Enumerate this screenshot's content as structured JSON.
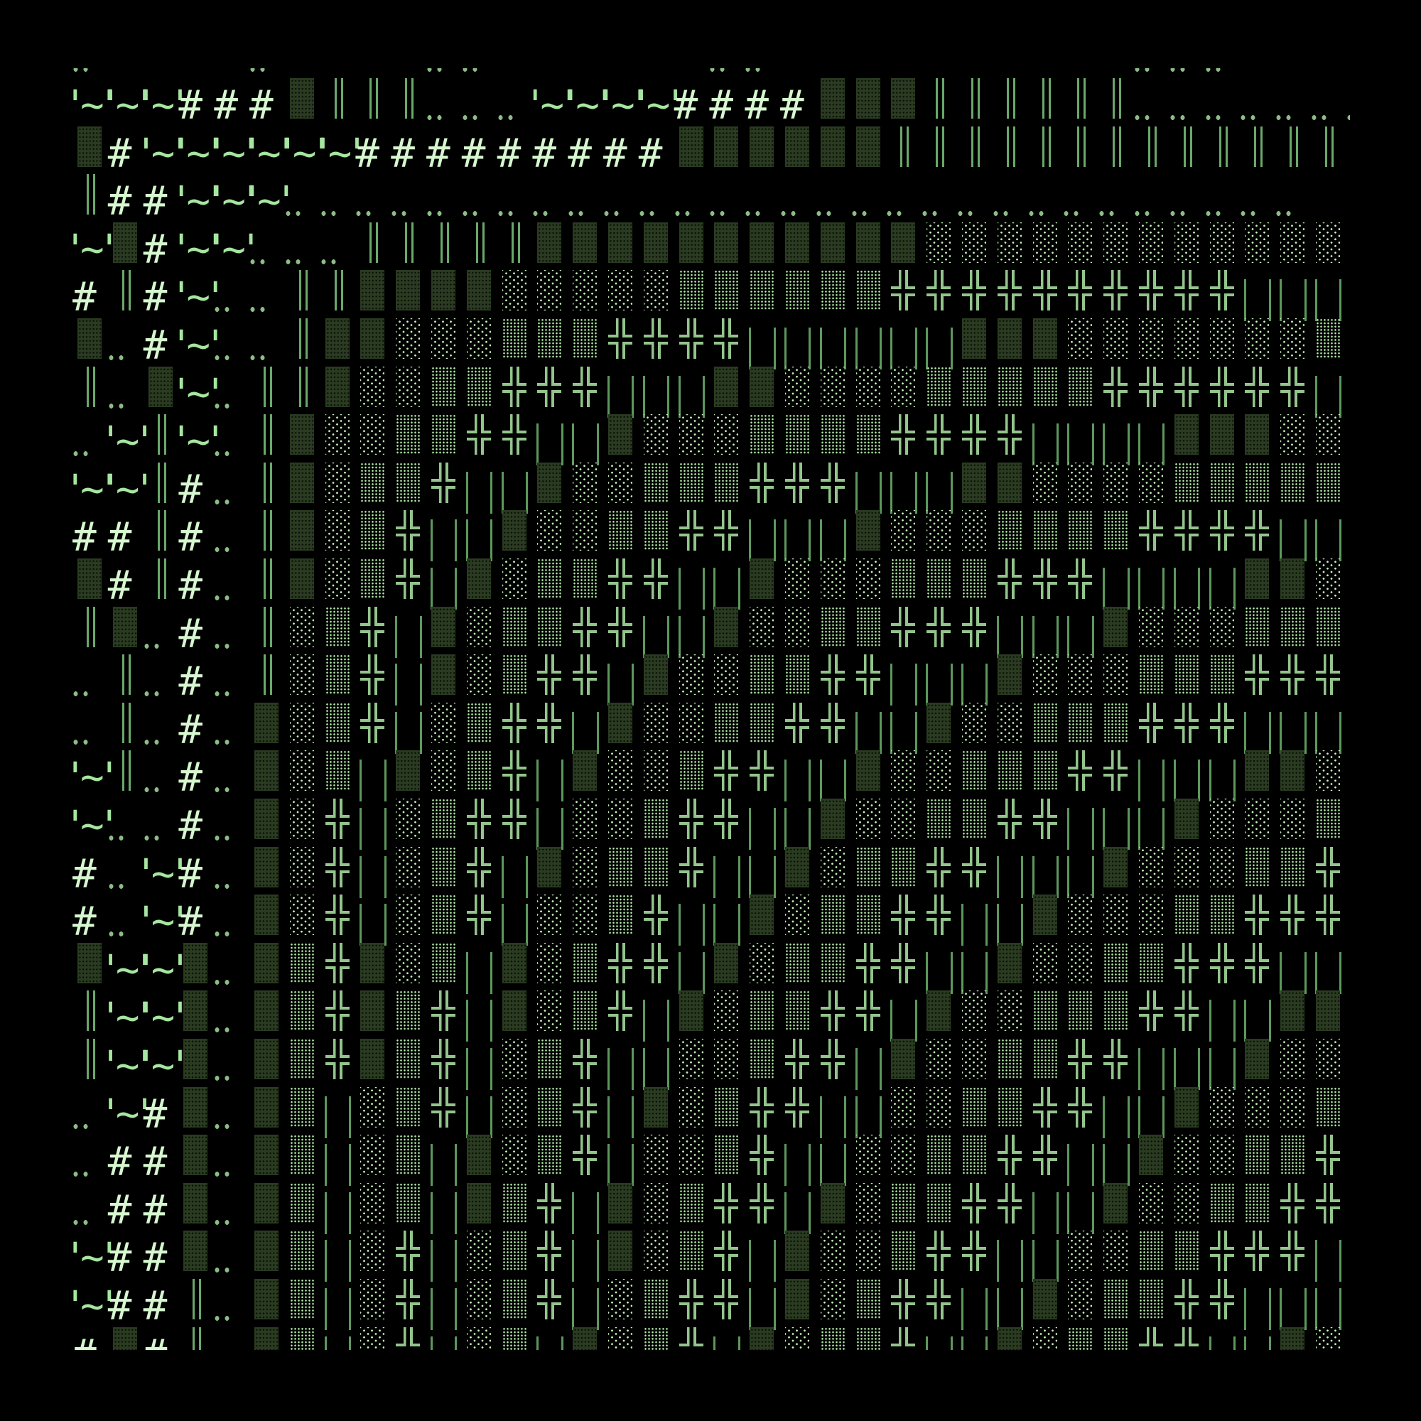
{
  "palette": {
    "background": "#000000",
    "hash": "#d6f7cf",
    "tilde": "#a6e6a0",
    "dark_shade": "#2a3b21",
    "light_shade_dots": "#c8f4be",
    "medium_shade_dots": "#b3eea8",
    "double_cross": "#93c48c",
    "bars": "#5c985c",
    "double_bar": "#6aa86a",
    "dots": "#8cbd86"
  },
  "rows": [
    "‥    ‥    ‥‥      ‥‥          ‥‥‥    ",
    "~~~###▓║║║‥‥‥~~~~####▓▓▓║║║║║║‥‥‥‥‥‥‥",
    "▓#~~~~~~#########▓▓▓▓▓▓║║║║║║║║║║║║║ ",
    "║##~~~‥‥‥‥‥‥‥‥‥‥‥‥‥‥‥‥‥‥‥‥‥‥‥‥‥‥‥‥‥",
    "~▓#~~‥‥‥║║║║║▓▓▓▓▓▓▓▓▓▓▓░░░░░░░░░░░░░",
    "#║#~‥‥║║▓▓▓▓░░░░░▒▒▒▒▒▒╬╬╬╬╬╬╬╬╬╬││││",
    "▓‥#~‥‥║▓▓░░░▒▒▒╬╬╬╬││││││▓▓▓░░░░░░░▒▒",
    "║‥▓~‥║║▓░░▒▒╬╬╬│││▓▓░░░░▒▒▒▒▒╬╬╬╬╬╬││",
    "‥~║~‥║▓░░▒▒╬╬││▓░░░▒▒▒▒╬╬╬╬││││▓▓▓░░░",
    "~~║#‥║▓░▒▒╬││▓░░▒▒▒╬╬╬│││▓▓░░░░▒▒▒▒▒▒",
    "##║#‥║▓░▒╬││▓░░▒▒╬╬│││▓░░░▒▒▒▒╬╬╬╬│││",
    "▓#║#‥║▓░▒╬│▓░▒▒╬╬││▓░░░▒▒▒╬╬╬││││▓▓░░",
    "║▓‥#‥║░▒╬│▓░▒▒╬╬││▓░░▒▒╬╬╬│││▓░░░▒▒▒▒",
    "‥║‥#‥║░▒╬│▓░▒╬╬│▓░░▒▒╬╬│││▓░░░▒▒▒╬╬╬╬",
    "‥║‥#‥▓░▒╬│░▒╬╬│▓░░▒▒╬╬││▓░░▒▒▒╬╬╬││││",
    "~║‥#‥▓░▒│▓░▒╬│▓░░▒╬╬││▓░░▒▒▒╬╬│││▓▓░░",
    "~‥‥#‥▓░╬│░▒╬╬│░░▒╬╬││▓░░▒▒╬╬│││▓░░░▒▒",
    "#‥~#‥▓░╬│░▒╬│▓░▒▒╬││▓░▒▒╬╬│││▓░░░▒▒╬╬",
    "#‥~#‥▓░╬│░▒╬│░░▒╬││▓░▒▒╬╬││▓░░░▒▒╬╬╬│",
    "▓~~▓‥▓▒╬▓░▒│▓░▒╬╬│▓░▒▒╬╬││▓░░▒▒╬╬╬││▓",
    "║~~▓‥▓▒╬▓▒╬│▓░▒╬│▓░▒▒╬╬│▓░░▒▒▒╬╬││▓▓░",
    "║~~▓‥▓▒╬▓▒╬│░▒╬││░░▒╬╬│▓░░▒▒╬╬│││▓░░░",
    "‥~#▓‥▓▒│░▒╬│░▒╬│▓░▒╬╬││░░▒▒╬╬││▓░░░▒▒",
    "‥##▓‥▓▒│░▒│▓░▒╬│░░▒╬││░░▒▒╬╬││▓░░▒▒╬╬",
    "‥##▓‥▓▒│░▒│▓▒╬│▓░▒╬╬│▓░▒▒╬╬││▓░░▒▒╬╬│",
    "~##▓‥▓▒│░╬│░▒╬│▓░▒╬│▓░░▒╬╬││░░▒▒╬╬╬││",
    "~##║‥▓▒│░╬│░▒╬│░▒╬╬│▓░▒╬╬││▓░▒▒╬╬│││▓",
    "#▓#║ ▓▒│░╬│░▒│▓░▒╬│▓░▒▒╬││▓░▒▒╬╬││▓░░"
  ]
}
